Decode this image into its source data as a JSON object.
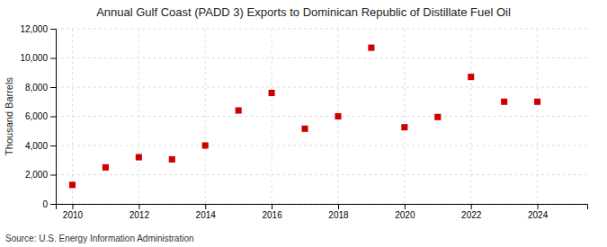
{
  "chart_data": {
    "type": "scatter",
    "title": "Annual Gulf Coast (PADD 3) Exports to Dominican Republic of Distillate Fuel Oil",
    "ylabel": "Thousand Barrels",
    "source": "Source: U.S. Energy Information Administration",
    "x": [
      2010,
      2011,
      2012,
      2013,
      2014,
      2015,
      2016,
      2017,
      2018,
      2019,
      2020,
      2021,
      2022,
      2023,
      2024
    ],
    "values": [
      1300,
      2500,
      3200,
      3050,
      4000,
      6400,
      7600,
      5150,
      6000,
      10700,
      5250,
      5950,
      8700,
      7000,
      7000
    ],
    "color": "#cc0000",
    "marker": "square",
    "xlim": [
      2009.5,
      2025.5
    ],
    "xticks": [
      2010,
      2012,
      2014,
      2016,
      2018,
      2020,
      2022,
      2024
    ],
    "ylim": [
      0,
      12000
    ],
    "yticks": [
      0,
      {
        "value": 2000,
        "label": "2,000"
      },
      {
        "value": 4000,
        "label": "4,000"
      },
      {
        "value": 6000,
        "label": "6,000"
      },
      {
        "value": 8000,
        "label": "8,000"
      },
      {
        "value": 10000,
        "label": "10,000"
      },
      {
        "value": 12000,
        "label": "12,000"
      }
    ],
    "grid": true
  }
}
